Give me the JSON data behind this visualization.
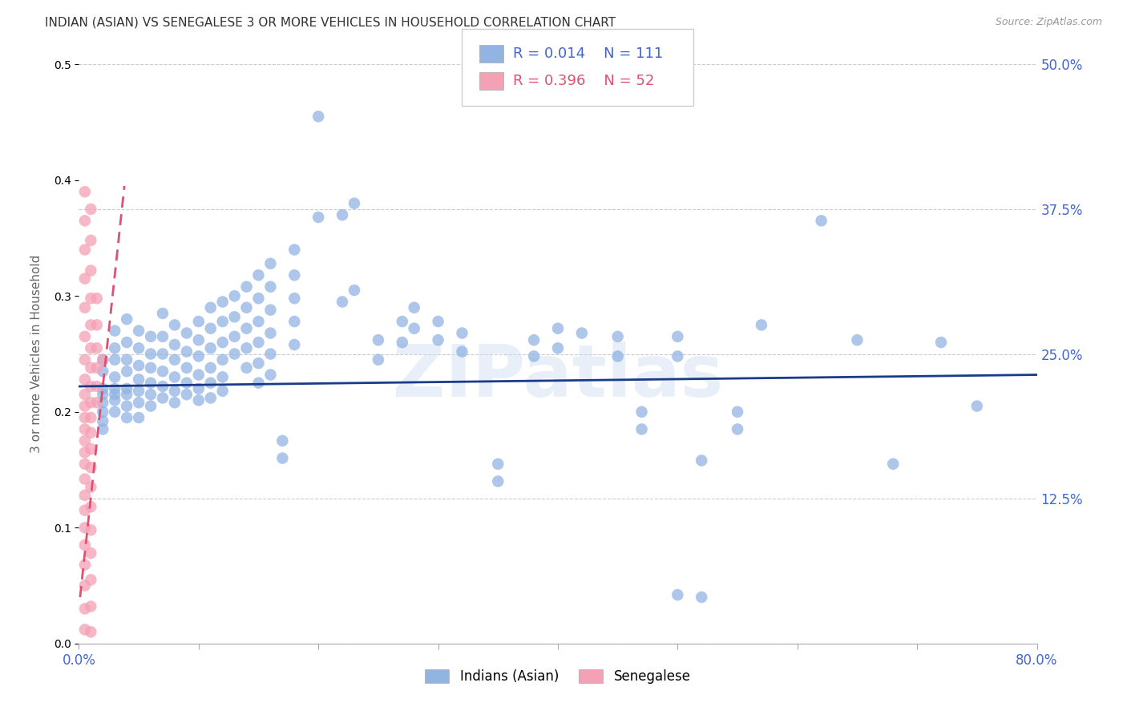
{
  "title": "INDIAN (ASIAN) VS SENEGALESE 3 OR MORE VEHICLES IN HOUSEHOLD CORRELATION CHART",
  "source": "Source: ZipAtlas.com",
  "ylabel": "3 or more Vehicles in Household",
  "watermark": "ZIPatlas",
  "xlim": [
    0.0,
    0.8
  ],
  "ylim": [
    0.0,
    0.5
  ],
  "xtick_positions": [
    0.0,
    0.1,
    0.2,
    0.3,
    0.4,
    0.5,
    0.6,
    0.7,
    0.8
  ],
  "xtick_labels": [
    "0.0%",
    "",
    "",
    "",
    "",
    "",
    "",
    "",
    "80.0%"
  ],
  "ytick_positions": [
    0.0,
    0.125,
    0.25,
    0.375,
    0.5
  ],
  "ytick_labels": [
    "",
    "12.5%",
    "25.0%",
    "37.5%",
    "50.0%"
  ],
  "legend_blue_r": "0.014",
  "legend_blue_n": "111",
  "legend_pink_r": "0.396",
  "legend_pink_n": "52",
  "blue_color": "#92b4e3",
  "pink_color": "#f4a0b5",
  "line_blue_color": "#1a3a8a",
  "line_pink_color": "#e05070",
  "grid_color": "#cccccc",
  "title_color": "#333333",
  "tick_color": "#4466cc",
  "source_color": "#999999",
  "background_color": "#ffffff",
  "blue_points": [
    [
      0.02,
      0.245
    ],
    [
      0.02,
      0.235
    ],
    [
      0.02,
      0.22
    ],
    [
      0.02,
      0.215
    ],
    [
      0.02,
      0.208
    ],
    [
      0.02,
      0.2
    ],
    [
      0.02,
      0.192
    ],
    [
      0.02,
      0.185
    ],
    [
      0.03,
      0.27
    ],
    [
      0.03,
      0.255
    ],
    [
      0.03,
      0.245
    ],
    [
      0.03,
      0.23
    ],
    [
      0.03,
      0.22
    ],
    [
      0.03,
      0.215
    ],
    [
      0.03,
      0.21
    ],
    [
      0.03,
      0.2
    ],
    [
      0.04,
      0.28
    ],
    [
      0.04,
      0.26
    ],
    [
      0.04,
      0.245
    ],
    [
      0.04,
      0.235
    ],
    [
      0.04,
      0.22
    ],
    [
      0.04,
      0.215
    ],
    [
      0.04,
      0.205
    ],
    [
      0.04,
      0.195
    ],
    [
      0.05,
      0.27
    ],
    [
      0.05,
      0.255
    ],
    [
      0.05,
      0.24
    ],
    [
      0.05,
      0.228
    ],
    [
      0.05,
      0.218
    ],
    [
      0.05,
      0.208
    ],
    [
      0.05,
      0.195
    ],
    [
      0.06,
      0.265
    ],
    [
      0.06,
      0.25
    ],
    [
      0.06,
      0.238
    ],
    [
      0.06,
      0.225
    ],
    [
      0.06,
      0.215
    ],
    [
      0.06,
      0.205
    ],
    [
      0.07,
      0.285
    ],
    [
      0.07,
      0.265
    ],
    [
      0.07,
      0.25
    ],
    [
      0.07,
      0.235
    ],
    [
      0.07,
      0.222
    ],
    [
      0.07,
      0.212
    ],
    [
      0.08,
      0.275
    ],
    [
      0.08,
      0.258
    ],
    [
      0.08,
      0.245
    ],
    [
      0.08,
      0.23
    ],
    [
      0.08,
      0.218
    ],
    [
      0.08,
      0.208
    ],
    [
      0.09,
      0.268
    ],
    [
      0.09,
      0.252
    ],
    [
      0.09,
      0.238
    ],
    [
      0.09,
      0.225
    ],
    [
      0.09,
      0.215
    ],
    [
      0.1,
      0.278
    ],
    [
      0.1,
      0.262
    ],
    [
      0.1,
      0.248
    ],
    [
      0.1,
      0.232
    ],
    [
      0.1,
      0.22
    ],
    [
      0.1,
      0.21
    ],
    [
      0.11,
      0.29
    ],
    [
      0.11,
      0.272
    ],
    [
      0.11,
      0.255
    ],
    [
      0.11,
      0.238
    ],
    [
      0.11,
      0.225
    ],
    [
      0.11,
      0.212
    ],
    [
      0.12,
      0.295
    ],
    [
      0.12,
      0.278
    ],
    [
      0.12,
      0.26
    ],
    [
      0.12,
      0.245
    ],
    [
      0.12,
      0.23
    ],
    [
      0.12,
      0.218
    ],
    [
      0.13,
      0.3
    ],
    [
      0.13,
      0.282
    ],
    [
      0.13,
      0.265
    ],
    [
      0.13,
      0.25
    ],
    [
      0.14,
      0.308
    ],
    [
      0.14,
      0.29
    ],
    [
      0.14,
      0.272
    ],
    [
      0.14,
      0.255
    ],
    [
      0.14,
      0.238
    ],
    [
      0.15,
      0.318
    ],
    [
      0.15,
      0.298
    ],
    [
      0.15,
      0.278
    ],
    [
      0.15,
      0.26
    ],
    [
      0.15,
      0.242
    ],
    [
      0.15,
      0.225
    ],
    [
      0.16,
      0.328
    ],
    [
      0.16,
      0.308
    ],
    [
      0.16,
      0.288
    ],
    [
      0.16,
      0.268
    ],
    [
      0.16,
      0.25
    ],
    [
      0.16,
      0.232
    ],
    [
      0.17,
      0.175
    ],
    [
      0.17,
      0.16
    ],
    [
      0.18,
      0.34
    ],
    [
      0.18,
      0.318
    ],
    [
      0.18,
      0.298
    ],
    [
      0.18,
      0.278
    ],
    [
      0.18,
      0.258
    ],
    [
      0.2,
      0.455
    ],
    [
      0.2,
      0.368
    ],
    [
      0.22,
      0.37
    ],
    [
      0.22,
      0.295
    ],
    [
      0.23,
      0.38
    ],
    [
      0.23,
      0.305
    ],
    [
      0.25,
      0.262
    ],
    [
      0.25,
      0.245
    ],
    [
      0.27,
      0.278
    ],
    [
      0.27,
      0.26
    ],
    [
      0.28,
      0.29
    ],
    [
      0.28,
      0.272
    ],
    [
      0.3,
      0.278
    ],
    [
      0.3,
      0.262
    ],
    [
      0.32,
      0.268
    ],
    [
      0.32,
      0.252
    ],
    [
      0.35,
      0.155
    ],
    [
      0.35,
      0.14
    ],
    [
      0.38,
      0.262
    ],
    [
      0.38,
      0.248
    ],
    [
      0.4,
      0.272
    ],
    [
      0.4,
      0.255
    ],
    [
      0.42,
      0.268
    ],
    [
      0.45,
      0.265
    ],
    [
      0.45,
      0.248
    ],
    [
      0.47,
      0.2
    ],
    [
      0.47,
      0.185
    ],
    [
      0.5,
      0.265
    ],
    [
      0.5,
      0.248
    ],
    [
      0.52,
      0.158
    ],
    [
      0.55,
      0.2
    ],
    [
      0.55,
      0.185
    ],
    [
      0.57,
      0.275
    ],
    [
      0.62,
      0.365
    ],
    [
      0.65,
      0.262
    ],
    [
      0.68,
      0.155
    ],
    [
      0.72,
      0.26
    ],
    [
      0.75,
      0.205
    ],
    [
      0.5,
      0.042
    ],
    [
      0.52,
      0.04
    ]
  ],
  "pink_points": [
    [
      0.005,
      0.39
    ],
    [
      0.005,
      0.365
    ],
    [
      0.005,
      0.34
    ],
    [
      0.005,
      0.315
    ],
    [
      0.005,
      0.29
    ],
    [
      0.005,
      0.265
    ],
    [
      0.005,
      0.245
    ],
    [
      0.005,
      0.228
    ],
    [
      0.005,
      0.215
    ],
    [
      0.005,
      0.205
    ],
    [
      0.005,
      0.195
    ],
    [
      0.005,
      0.185
    ],
    [
      0.005,
      0.175
    ],
    [
      0.005,
      0.165
    ],
    [
      0.005,
      0.155
    ],
    [
      0.005,
      0.142
    ],
    [
      0.005,
      0.128
    ],
    [
      0.005,
      0.115
    ],
    [
      0.005,
      0.1
    ],
    [
      0.005,
      0.085
    ],
    [
      0.005,
      0.068
    ],
    [
      0.005,
      0.05
    ],
    [
      0.005,
      0.03
    ],
    [
      0.005,
      0.012
    ],
    [
      0.01,
      0.375
    ],
    [
      0.01,
      0.348
    ],
    [
      0.01,
      0.322
    ],
    [
      0.01,
      0.298
    ],
    [
      0.01,
      0.275
    ],
    [
      0.01,
      0.255
    ],
    [
      0.01,
      0.238
    ],
    [
      0.01,
      0.222
    ],
    [
      0.01,
      0.208
    ],
    [
      0.01,
      0.195
    ],
    [
      0.01,
      0.182
    ],
    [
      0.01,
      0.168
    ],
    [
      0.01,
      0.152
    ],
    [
      0.01,
      0.135
    ],
    [
      0.01,
      0.118
    ],
    [
      0.01,
      0.098
    ],
    [
      0.01,
      0.078
    ],
    [
      0.01,
      0.055
    ],
    [
      0.01,
      0.032
    ],
    [
      0.01,
      0.01
    ],
    [
      0.015,
      0.298
    ],
    [
      0.015,
      0.275
    ],
    [
      0.015,
      0.255
    ],
    [
      0.015,
      0.238
    ],
    [
      0.015,
      0.222
    ],
    [
      0.015,
      0.208
    ],
    [
      0.02,
      0.245
    ]
  ],
  "blue_line": [
    [
      0.0,
      0.222
    ],
    [
      0.8,
      0.232
    ]
  ],
  "pink_line_start_x": 0.001,
  "pink_line_start_y": 0.04,
  "pink_line_end_x": 0.038,
  "pink_line_end_y": 0.395
}
